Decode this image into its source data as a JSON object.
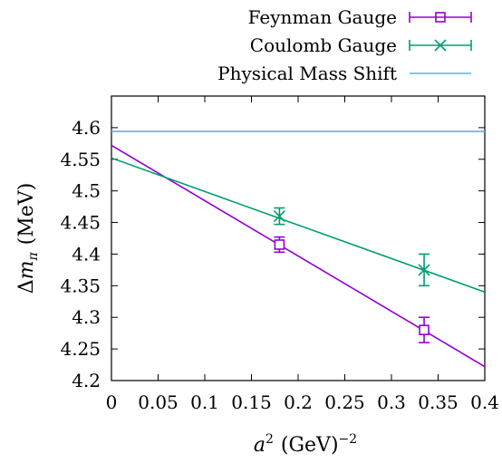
{
  "chart_data": {
    "type": "scatter",
    "title": "",
    "xlabel_base": "a",
    "xlabel_sup": "2",
    "xlabel_unit": "(GeV)",
    "xlabel_unit_sup": "−2",
    "ylabel_delta": "Δ",
    "ylabel_m": "m",
    "ylabel_sub": "π",
    "ylabel_unit": "(MeV)",
    "xlim": [
      0,
      0.4
    ],
    "ylim": [
      4.2,
      4.65
    ],
    "xticks": [
      "0",
      "0.05",
      "0.1",
      "0.15",
      "0.2",
      "0.25",
      "0.3",
      "0.35",
      "0.4"
    ],
    "yticks": [
      "4.2",
      "4.25",
      "4.3",
      "4.35",
      "4.4",
      "4.45",
      "4.5",
      "4.55",
      "4.6"
    ],
    "xtick_values": [
      0,
      0.05,
      0.1,
      0.15,
      0.2,
      0.25,
      0.3,
      0.35,
      0.4
    ],
    "ytick_values": [
      4.2,
      4.25,
      4.3,
      4.35,
      4.4,
      4.45,
      4.5,
      4.55,
      4.6
    ],
    "grid": false,
    "legend_position": "top-right",
    "series": [
      {
        "name": "Feynman Gauge",
        "color": "#9400d3",
        "marker": "square",
        "points": [
          {
            "x": 0.18,
            "y": 4.415,
            "err": 0.012
          },
          {
            "x": 0.335,
            "y": 4.28,
            "err": 0.02
          }
        ],
        "fit": [
          [
            0,
            4.572
          ],
          [
            0.4,
            4.222
          ]
        ]
      },
      {
        "name": "Coulomb Gauge",
        "color": "#009e73",
        "marker": "x",
        "points": [
          {
            "x": 0.18,
            "y": 4.46,
            "err": 0.013
          },
          {
            "x": 0.335,
            "y": 4.375,
            "err": 0.025
          }
        ],
        "fit": [
          [
            0,
            4.552
          ],
          [
            0.4,
            4.34
          ]
        ]
      },
      {
        "name": "Physical Mass Shift",
        "color": "#56b4e9",
        "marker": "none",
        "hline": 4.594
      }
    ]
  }
}
